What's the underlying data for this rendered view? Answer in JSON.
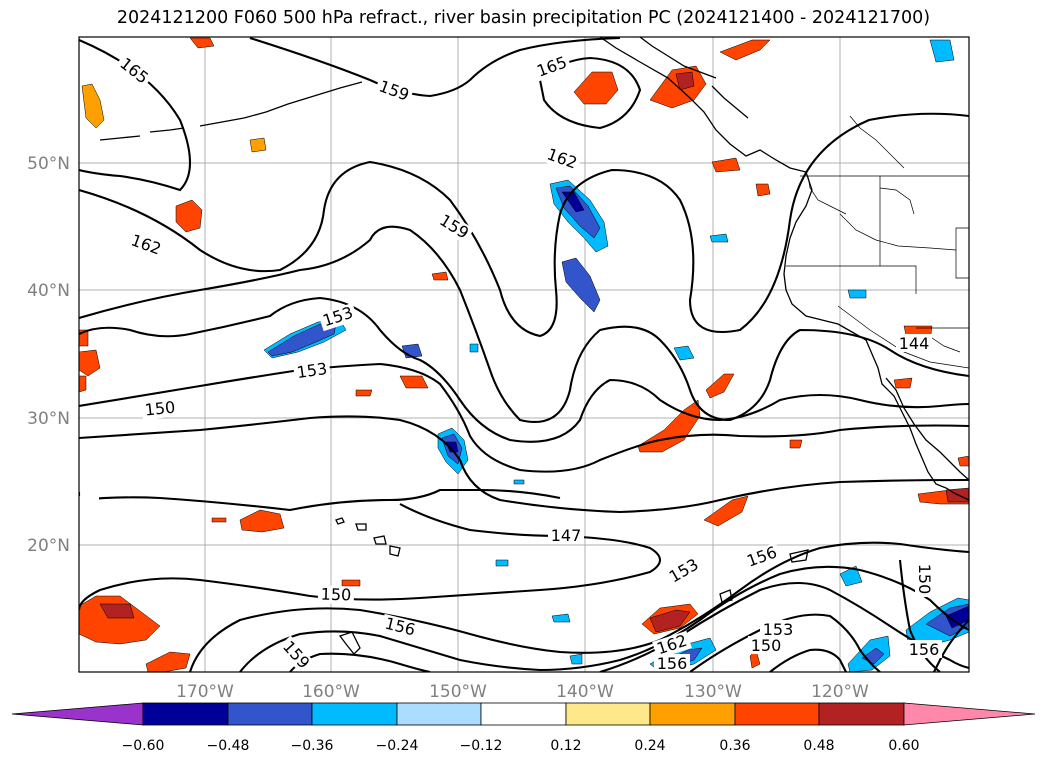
{
  "title": "2024121200 F060 500 hPa refract., river basin precipitation PC (2024121400 - 2024121700)",
  "map": {
    "lat_ticks": [
      "50°N",
      "40°N",
      "30°N",
      "20°N"
    ],
    "lon_ticks": [
      "170°W",
      "160°W",
      "150°W",
      "140°W",
      "130°W",
      "120°W"
    ],
    "contour_labels": [
      "165",
      "159",
      "165",
      "162",
      "159",
      "162",
      "153",
      "153",
      "150",
      "147",
      "153",
      "156",
      "150",
      "156",
      "159",
      "162",
      "156",
      "153",
      "150",
      "150",
      "156",
      "144"
    ]
  },
  "colorbar": {
    "colors": [
      "#9933cc",
      "#000099",
      "#3355cc",
      "#00bbff",
      "#aaddff",
      "#ffffff",
      "#ffe88a",
      "#ffa000",
      "#ff4400",
      "#b22222",
      "#ff88aa"
    ],
    "tick_labels": [
      "−0.60",
      "−0.48",
      "−0.36",
      "−0.24",
      "−0.12",
      "0.12",
      "0.24",
      "0.36",
      "0.48",
      "0.60"
    ]
  }
}
